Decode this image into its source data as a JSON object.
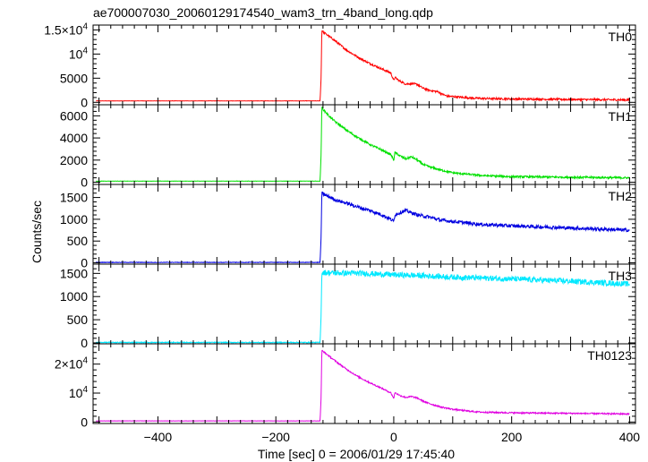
{
  "chart_data": {
    "type": "line",
    "title": "ae700007030_20060129174540_wam3_trn_4band_long.qdp",
    "xlabel": "Time [sec] 0 = 2006/01/29 17:45:40",
    "ylabel": "Counts/sec",
    "xlim": [
      -510,
      410
    ],
    "x_ticks": [
      {
        "value": -400,
        "label": "−400"
      },
      {
        "value": -200,
        "label": "−200"
      },
      {
        "value": 0,
        "label": "0"
      },
      {
        "value": 200,
        "label": "200"
      },
      {
        "value": 400,
        "label": "400"
      }
    ],
    "grid": false,
    "panels": [
      {
        "name": "TH0",
        "color": "#ff0000",
        "ylim": [
          -500,
          16000
        ],
        "y_ticks": [
          {
            "value": 0,
            "label": "0"
          },
          {
            "value": 5000,
            "label": "5000"
          },
          {
            "value": 10000,
            "label": "10",
            "exp": "4"
          },
          {
            "value": 15000,
            "label": "1.5×10",
            "exp": "4"
          }
        ],
        "x": [
          -505,
          -125,
          -123,
          -122,
          -120,
          -110,
          -100,
          -80,
          -60,
          -40,
          -20,
          -5,
          0,
          2,
          10,
          20,
          30,
          40,
          50,
          60,
          70,
          75,
          80,
          90,
          100,
          110,
          130,
          150,
          200,
          300,
          400
        ],
        "y": [
          300,
          300,
          6000,
          15000,
          14600,
          13700,
          12800,
          10800,
          9300,
          8000,
          6900,
          6100,
          4500,
          5200,
          4400,
          3800,
          3900,
          3700,
          2900,
          2500,
          2300,
          2200,
          1800,
          1300,
          1200,
          1100,
          900,
          800,
          700,
          600,
          500
        ],
        "noise": 200
      },
      {
        "name": "TH1",
        "color": "#00e000",
        "ylim": [
          -200,
          7000
        ],
        "y_ticks": [
          {
            "value": 0,
            "label": "0"
          },
          {
            "value": 2000,
            "label": "2000"
          },
          {
            "value": 4000,
            "label": "4000"
          },
          {
            "value": 6000,
            "label": "6000"
          }
        ],
        "x": [
          -505,
          -125,
          -123,
          -122,
          -120,
          -110,
          -100,
          -80,
          -60,
          -40,
          -20,
          -5,
          0,
          2,
          10,
          20,
          30,
          40,
          50,
          60,
          80,
          100,
          130,
          150,
          200,
          300,
          400
        ],
        "y": [
          100,
          100,
          3000,
          6800,
          6600,
          6000,
          5500,
          4700,
          4000,
          3400,
          2900,
          2500,
          2000,
          2700,
          2400,
          2100,
          2300,
          2000,
          1600,
          1400,
          1100,
          850,
          700,
          600,
          500,
          450,
          400
        ],
        "noise": 90
      },
      {
        "name": "TH2",
        "color": "#0000e0",
        "ylim": [
          -30,
          1800
        ],
        "y_ticks": [
          {
            "value": 0,
            "label": "0"
          },
          {
            "value": 500,
            "label": "500"
          },
          {
            "value": 1000,
            "label": "1000"
          },
          {
            "value": 1500,
            "label": "1500"
          }
        ],
        "x": [
          -505,
          -125,
          -123,
          -122,
          -120,
          -110,
          -100,
          -80,
          -60,
          -40,
          -20,
          -5,
          0,
          2,
          10,
          20,
          30,
          40,
          60,
          80,
          100,
          150,
          200,
          300,
          400
        ],
        "y": [
          10,
          10,
          700,
          1600,
          1580,
          1520,
          1450,
          1370,
          1280,
          1200,
          1100,
          1000,
          950,
          1100,
          1150,
          1200,
          1150,
          1100,
          1050,
          980,
          950,
          880,
          850,
          800,
          750
        ],
        "noise": 40
      },
      {
        "name": "TH3",
        "color": "#00e8ff",
        "ylim": [
          -20,
          1700
        ],
        "y_ticks": [
          {
            "value": 0,
            "label": "0"
          },
          {
            "value": 500,
            "label": "500"
          },
          {
            "value": 1000,
            "label": "1000"
          },
          {
            "value": 1500,
            "label": "1500"
          }
        ],
        "x": [
          -505,
          -125,
          -123,
          -122,
          -120,
          -100,
          -50,
          0,
          50,
          100,
          200,
          300,
          400
        ],
        "y": [
          10,
          10,
          700,
          1500,
          1520,
          1510,
          1500,
          1470,
          1450,
          1420,
          1380,
          1330,
          1270
        ],
        "noise": 60
      },
      {
        "name": "TH0123",
        "color": "#e000e0",
        "ylim": [
          -500,
          27000
        ],
        "y_ticks": [
          {
            "value": 0,
            "label": "0"
          },
          {
            "value": 10000,
            "label": "10",
            "exp": "4"
          },
          {
            "value": 20000,
            "label": "2×10",
            "exp": "4"
          }
        ],
        "x": [
          -505,
          -125,
          -123,
          -122,
          -120,
          -110,
          -100,
          -80,
          -60,
          -40,
          -20,
          -5,
          0,
          2,
          10,
          20,
          30,
          40,
          50,
          60,
          80,
          100,
          130,
          150,
          200,
          300,
          400
        ],
        "y": [
          400,
          400,
          10000,
          24800,
          24400,
          22800,
          21200,
          18200,
          15600,
          13500,
          11600,
          10100,
          8200,
          10200,
          9200,
          8500,
          8800,
          8300,
          7200,
          6400,
          5200,
          4400,
          3700,
          3400,
          3200,
          3000,
          2800
        ],
        "noise": 250
      }
    ]
  }
}
